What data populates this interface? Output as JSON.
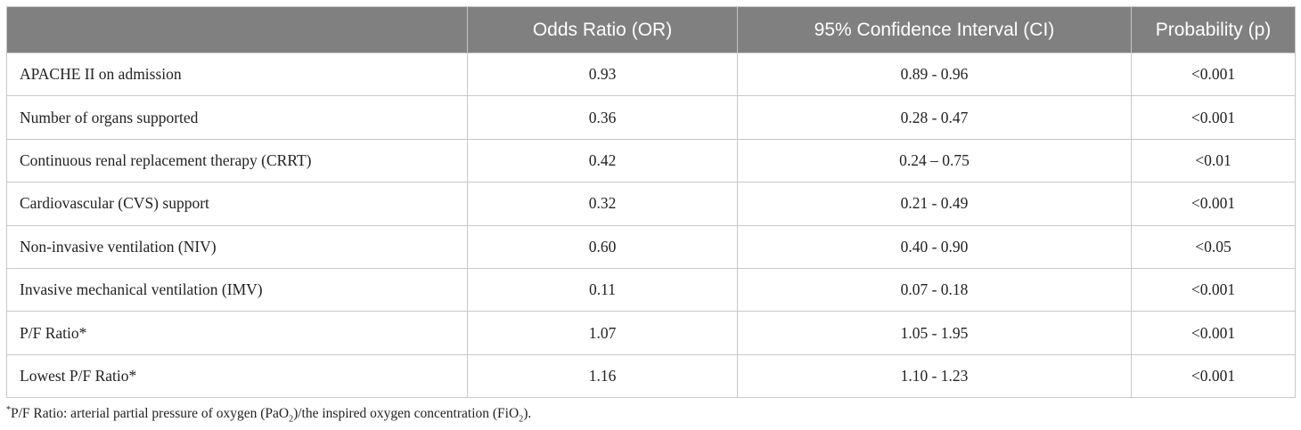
{
  "table": {
    "headers": [
      "",
      "Odds Ratio (OR)",
      "95% Confidence Interval (CI)",
      "Probability (p)"
    ],
    "rows": [
      [
        "APACHE II on admission",
        "0.93",
        "0.89 - 0.96",
        "<0.001"
      ],
      [
        "Number of organs supported",
        "0.36",
        "0.28 - 0.47",
        "<0.001"
      ],
      [
        "Continuous renal replacement therapy (CRRT)",
        "0.42",
        "0.24 – 0.75",
        "<0.01"
      ],
      [
        "Cardiovascular (CVS) support",
        "0.32",
        "0.21 - 0.49",
        "<0.001"
      ],
      [
        "Non-invasive ventilation (NIV)",
        "0.60",
        "0.40 - 0.90",
        "<0.05"
      ],
      [
        "Invasive mechanical ventilation (IMV)",
        "0.11",
        "0.07 - 0.18",
        "<0.001"
      ],
      [
        "P/F Ratio*",
        "1.07",
        "1.05 - 1.95",
        "<0.001"
      ],
      [
        "Lowest P/F Ratio*",
        "1.16",
        "1.10 - 1.23",
        "<0.001"
      ]
    ]
  },
  "footnote": {
    "marker": "*",
    "text_1": "P/F Ratio: arterial partial pressure of oxygen (PaO",
    "sub_1": "2",
    "text_2": ")/the inspired oxygen concentration (FiO",
    "sub_2": "2",
    "text_3": ")."
  },
  "colors": {
    "header_bg": "#808080",
    "header_text": "#ffffff",
    "border": "#c8c8c8"
  }
}
